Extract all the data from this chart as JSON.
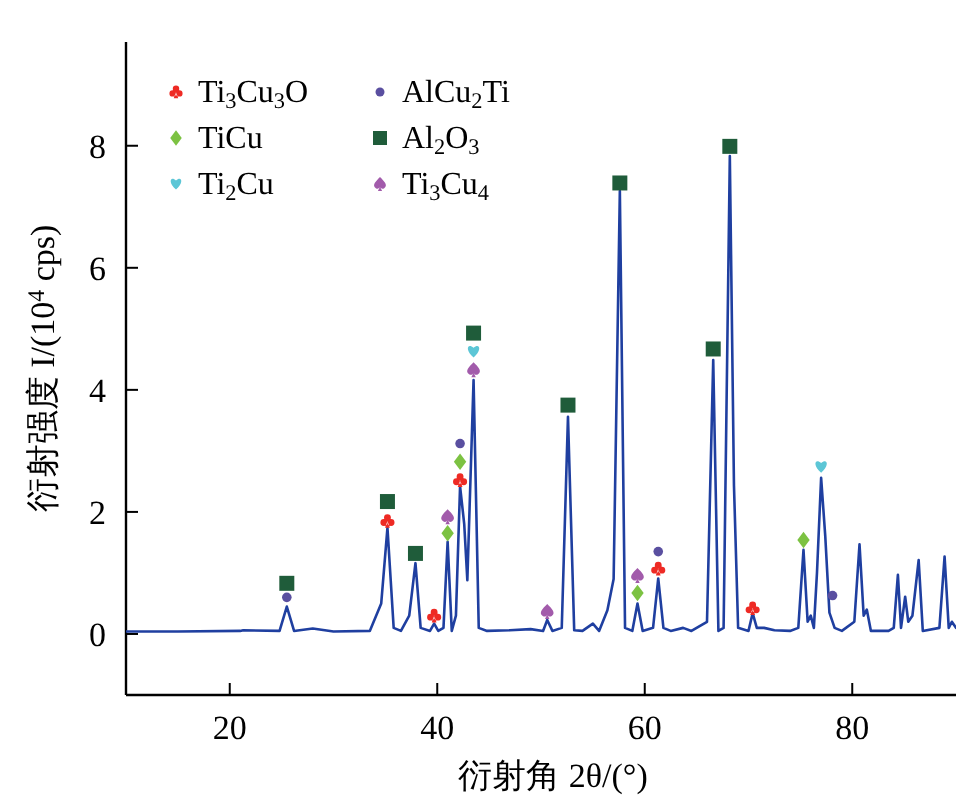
{
  "chart_data": {
    "type": "line",
    "xlabel": "衍射角 2θ/(°)",
    "ylabel": "衍射强度 I/(10$^{4}$ cps)",
    "xlim": [
      10,
      90
    ],
    "ylim": [
      -1,
      9.7
    ],
    "xticks": [
      20,
      40,
      60,
      80
    ],
    "yticks": [
      0,
      2,
      4,
      6,
      8
    ],
    "legend": "top left",
    "series": [
      {
        "color": "#1f3fa0",
        "x": [
          10,
          15,
          21,
          21.3,
          24.8,
          25.5,
          26.2,
          28.0,
          30,
          33.5,
          34.6,
          35.2,
          35.8,
          36.5,
          37.3,
          37.9,
          38.4,
          39.3,
          39.7,
          40.1,
          40.6,
          41.0,
          41.4,
          41.8,
          42.2,
          42.6,
          42.9,
          43.5,
          44.0,
          44.8,
          47,
          49,
          50.2,
          50.6,
          51.1,
          52.0,
          52.6,
          53.2,
          54,
          55.0,
          55.6,
          56.4,
          57.0,
          57.6,
          58.1,
          58.8,
          59.3,
          59.8,
          60.8,
          61.3,
          61.8,
          62.5,
          63.7,
          64.5,
          66.0,
          66.6,
          67.1,
          67.6,
          68.2,
          68.6,
          69.0,
          70.0,
          70.4,
          70.8,
          71.5,
          72.5,
          74,
          74.8,
          75.3,
          75.7,
          76.0,
          76.3,
          76.6,
          77.0,
          77.4,
          77.8,
          78.3,
          79,
          80.2,
          80.7,
          81.1,
          81.4,
          81.8,
          83.5,
          84.0,
          84.4,
          84.7,
          85.1,
          85.4,
          85.8,
          86.4,
          86.8,
          88.4,
          88.9,
          89.3,
          89.6,
          90
        ],
        "values": [
          0.04,
          0.04,
          0.05,
          0.06,
          0.05,
          0.45,
          0.05,
          0.09,
          0.04,
          0.05,
          0.5,
          1.74,
          0.1,
          0.05,
          0.3,
          1.16,
          0.1,
          0.05,
          0.17,
          0.05,
          0.1,
          1.51,
          0.05,
          0.3,
          2.42,
          1.8,
          0.88,
          4.16,
          0.1,
          0.05,
          0.06,
          0.08,
          0.05,
          0.23,
          0.05,
          0.1,
          3.56,
          0.06,
          0.05,
          0.17,
          0.05,
          0.39,
          0.9,
          7.26,
          0.1,
          0.05,
          0.5,
          0.05,
          0.1,
          0.91,
          0.1,
          0.05,
          0.1,
          0.05,
          0.2,
          4.49,
          0.05,
          0.1,
          7.83,
          2.43,
          0.1,
          0.05,
          0.34,
          0.1,
          0.1,
          0.06,
          0.05,
          0.1,
          1.38,
          0.2,
          0.3,
          0.1,
          1.0,
          2.56,
          1.6,
          0.35,
          0.1,
          0.05,
          0.2,
          1.47,
          0.3,
          0.4,
          0.05,
          0.05,
          0.1,
          0.97,
          0.1,
          0.61,
          0.2,
          0.3,
          1.21,
          0.05,
          0.1,
          1.27,
          0.1,
          0.2,
          0.1
        ]
      },
      {
        "type": "scatter",
        "name": "Ti$_{3}$Cu$_{3}$O",
        "color": "#ee2a24",
        "x": [
          35.2,
          39.7,
          42.2,
          61.3,
          70.4
        ],
        "values": [
          1.85,
          0.3,
          2.52,
          1.07,
          0.42
        ]
      },
      {
        "type": "scatter",
        "name": "TiCu",
        "color": "#7cc242",
        "marker": "diamond",
        "x": [
          41.0,
          42.2,
          59.3,
          75.3
        ],
        "values": [
          1.65,
          2.82,
          0.67,
          1.54
        ]
      },
      {
        "type": "scatter",
        "name": "Ti$_{2}$Cu",
        "color": "#5cc6d6",
        "x": [
          43.5,
          77.0
        ],
        "values": [
          4.63,
          2.74
        ]
      },
      {
        "type": "scatter",
        "name": "AlCu$_{2}$Ti",
        "color": "#5a4fa0",
        "marker": "circle",
        "x": [
          25.5,
          42.2,
          61.3,
          78.1
        ],
        "values": [
          0.6,
          3.12,
          1.35,
          0.63
        ]
      },
      {
        "type": "scatter",
        "name": "Al$_{2}$O$_{3}$",
        "color": "#1f5c3a",
        "marker": "square",
        "x": [
          25.5,
          35.2,
          37.9,
          43.5,
          52.6,
          57.6,
          66.6,
          68.2
        ],
        "values": [
          0.83,
          2.17,
          1.32,
          4.93,
          3.75,
          7.39,
          4.67,
          7.99
        ]
      },
      {
        "type": "scatter",
        "name": "Ti$_{3}$Cu$_{4}$",
        "color": "#a25bab",
        "x": [
          41.0,
          43.5,
          50.6,
          59.3
        ],
        "values": [
          1.92,
          4.33,
          0.37,
          0.96
        ]
      }
    ]
  }
}
